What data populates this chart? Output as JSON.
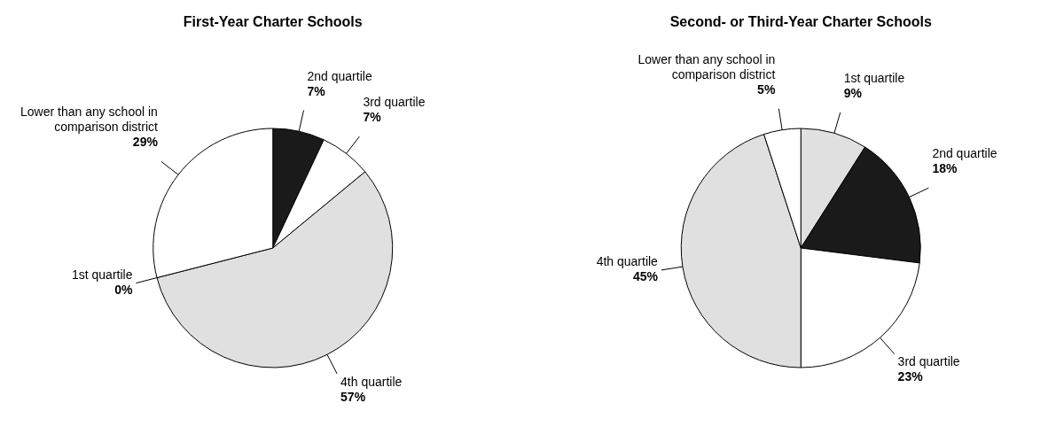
{
  "chart_data": [
    {
      "type": "pie",
      "title": "First-Year Charter Schools",
      "categories": [
        "2nd quartile",
        "3rd quartile",
        "4th quartile",
        "1st quartile",
        "Lower than any school in comparison district"
      ],
      "values": [
        7,
        7,
        57,
        0,
        29
      ],
      "value_labels": [
        "7%",
        "7%",
        "57%",
        "0%",
        "29%"
      ],
      "colors": [
        "#1a1a1a",
        "#ffffff",
        "#e0e0e0",
        null,
        "#ffffff"
      ]
    },
    {
      "type": "pie",
      "title": "Second- or Third-Year Charter Schools",
      "categories": [
        "1st quartile",
        "2nd quartile",
        "3rd quartile",
        "4th quartile",
        "Lower than any school in comparison district"
      ],
      "values": [
        9,
        18,
        23,
        45,
        5
      ],
      "value_labels": [
        "9%",
        "18%",
        "23%",
        "45%",
        "5%"
      ],
      "colors": [
        "#e0e0e0",
        "#1a1a1a",
        "#ffffff",
        "#e0e0e0",
        "#ffffff"
      ]
    }
  ]
}
